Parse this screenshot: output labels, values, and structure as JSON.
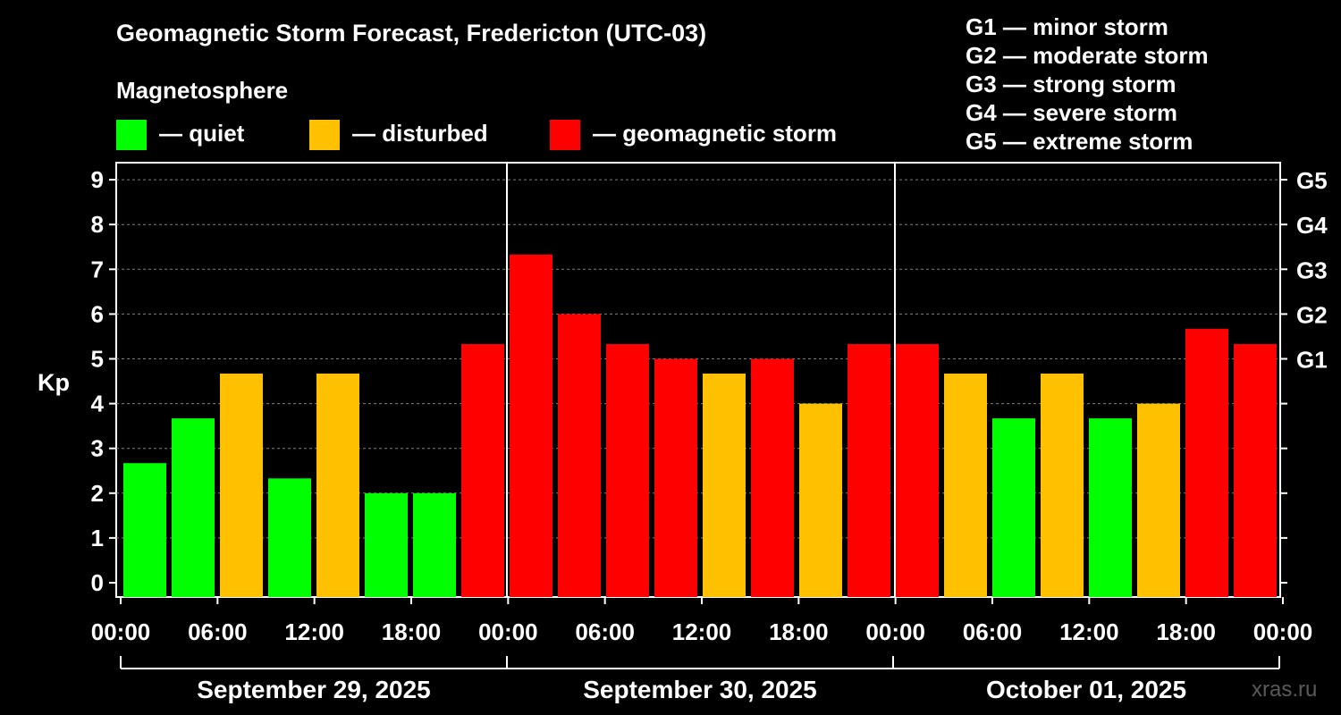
{
  "header": {
    "title": "Geomagnetic Storm Forecast, Fredericton (UTC-03)",
    "magnetosphere_label": "Magnetosphere"
  },
  "legend": [
    {
      "label": "— quiet",
      "color": "#00ff00"
    },
    {
      "label": "— disturbed",
      "color": "#ffc000"
    },
    {
      "label": "— geomagnetic storm",
      "color": "#ff0000"
    }
  ],
  "g_scale": [
    "G1 — minor storm",
    "G2 — moderate storm",
    "G3 — strong storm",
    "G4 — severe storm",
    "G5 — extreme storm"
  ],
  "watermark": "xras.ru",
  "colors": {
    "quiet": "#00ff00",
    "disturbed": "#ffc000",
    "storm": "#ff0000",
    "background": "#000000",
    "axis": "#ffffff",
    "grid": "#808080"
  },
  "chart_data": {
    "type": "bar",
    "ylabel": "Kp",
    "ylim": [
      0,
      9.3
    ],
    "y_ticks": [
      0,
      1,
      2,
      3,
      4,
      5,
      6,
      7,
      8,
      9
    ],
    "grid": true,
    "right_axis_ticks": [
      {
        "value": 5,
        "label": "G1"
      },
      {
        "value": 6,
        "label": "G2"
      },
      {
        "value": 7,
        "label": "G3"
      },
      {
        "value": 8,
        "label": "G4"
      },
      {
        "value": 9,
        "label": "G5"
      }
    ],
    "x_tick_labels": [
      "00:00",
      "06:00",
      "12:00",
      "18:00",
      "00:00",
      "06:00",
      "12:00",
      "18:00",
      "00:00",
      "06:00",
      "12:00",
      "18:00",
      "00:00"
    ],
    "days": [
      "September 29, 2025",
      "September 30, 2025",
      "October 01, 2025"
    ],
    "interval_hours": 3,
    "values": [
      2.67,
      3.67,
      4.67,
      2.33,
      4.67,
      2.0,
      2.0,
      5.33,
      7.33,
      6.0,
      5.33,
      5.0,
      4.67,
      5.0,
      4.0,
      5.33,
      5.33,
      4.67,
      3.67,
      4.67,
      3.67,
      4.0,
      5.67,
      5.33
    ],
    "levels": [
      "quiet",
      "quiet",
      "disturbed",
      "quiet",
      "disturbed",
      "quiet",
      "quiet",
      "storm",
      "storm",
      "storm",
      "storm",
      "storm",
      "disturbed",
      "storm",
      "disturbed",
      "storm",
      "storm",
      "disturbed",
      "quiet",
      "disturbed",
      "quiet",
      "disturbed",
      "storm",
      "storm"
    ]
  }
}
